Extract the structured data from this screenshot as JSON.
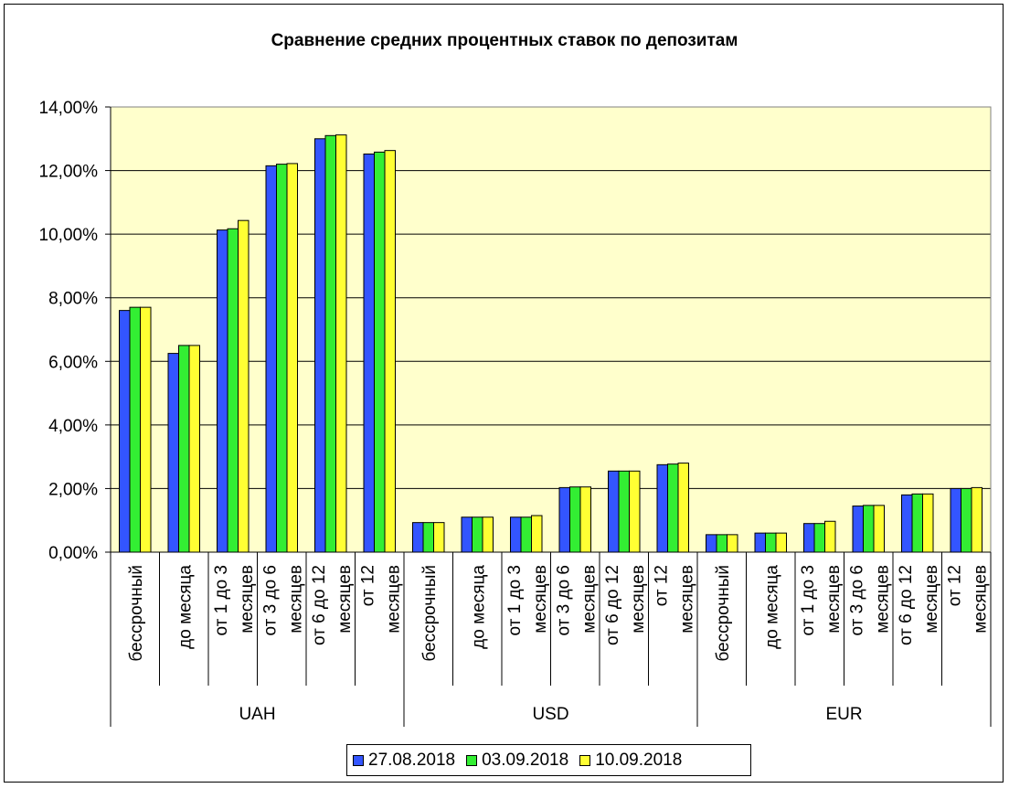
{
  "chart_data": {
    "type": "bar",
    "title": "Сравнение средних процентных ставок по депозитам",
    "ylim": [
      0,
      14
    ],
    "y_tick_labels": [
      "0,00%",
      "2,00%",
      "4,00%",
      "6,00%",
      "8,00%",
      "10,00%",
      "12,00%",
      "14,00%"
    ],
    "grid": true,
    "legend_position": "bottom",
    "plot_background": "#FFFFCC",
    "groups": [
      "UAH",
      "USD",
      "EUR"
    ],
    "categories": [
      [
        "бессрочный"
      ],
      [
        "до месяца"
      ],
      [
        "от 1 до 3",
        "месяцев"
      ],
      [
        "от 3 до 6",
        "месяцев"
      ],
      [
        "от 6 до 12",
        "месяцев"
      ],
      [
        "от 12",
        "месяцев"
      ],
      [
        "бессрочный"
      ],
      [
        "до месяца"
      ],
      [
        "от 1 до 3",
        "месяцев"
      ],
      [
        "от 3 до 6",
        "месяцев"
      ],
      [
        "от 6 до 12",
        "месяцев"
      ],
      [
        "от 12",
        "месяцев"
      ],
      [
        "бессрочный"
      ],
      [
        "до месяца"
      ],
      [
        "от 1 до 3",
        "месяцев"
      ],
      [
        "от 3 до 6",
        "месяцев"
      ],
      [
        "от 6 до 12",
        "месяцев"
      ],
      [
        "от 12",
        "месяцев"
      ]
    ],
    "series": [
      {
        "name": "27.08.2018",
        "color": "#3355FF",
        "values": [
          7.6,
          6.25,
          10.13,
          12.15,
          13.0,
          12.52,
          0.93,
          1.1,
          1.1,
          2.03,
          2.55,
          2.75,
          0.55,
          0.6,
          0.9,
          1.45,
          1.8,
          2.0
        ]
      },
      {
        "name": "03.09.2018",
        "color": "#33EE33",
        "values": [
          7.7,
          6.5,
          10.17,
          12.2,
          13.1,
          12.58,
          0.93,
          1.1,
          1.1,
          2.05,
          2.55,
          2.77,
          0.55,
          0.6,
          0.9,
          1.47,
          1.83,
          2.0
        ]
      },
      {
        "name": "10.09.2018",
        "color": "#FFFF33",
        "values": [
          7.7,
          6.5,
          10.43,
          12.22,
          13.12,
          12.63,
          0.93,
          1.1,
          1.15,
          2.05,
          2.55,
          2.8,
          0.55,
          0.6,
          0.97,
          1.47,
          1.83,
          2.03
        ]
      }
    ]
  },
  "legend": {
    "items": [
      {
        "label": "27.08.2018",
        "color": "#3355FF"
      },
      {
        "label": "03.09.2018",
        "color": "#33EE33"
      },
      {
        "label": "10.09.2018",
        "color": "#FFFF33"
      }
    ]
  }
}
